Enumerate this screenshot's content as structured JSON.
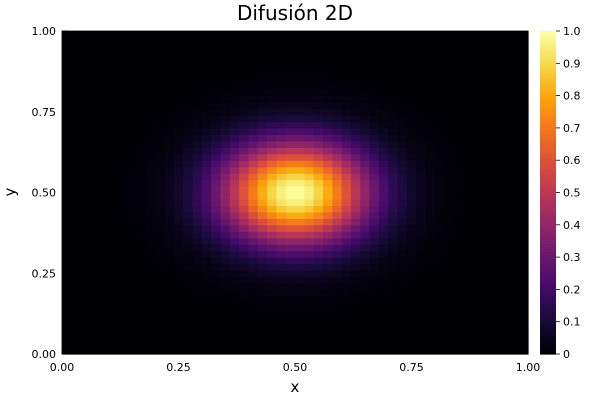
{
  "chart_data": {
    "type": "heatmap",
    "title": "Difusión 2D",
    "xlabel": "x",
    "ylabel": "y",
    "xlim": [
      0,
      1
    ],
    "ylim": [
      0,
      1
    ],
    "x_ticks": [
      "0.00",
      "0.25",
      "0.50",
      "0.75",
      "1.00"
    ],
    "y_ticks": [
      "0.00",
      "0.25",
      "0.50",
      "0.75",
      "1.00"
    ],
    "grid_cells": [
      50,
      50
    ],
    "field": {
      "shape": "gaussian",
      "center": [
        0.5,
        0.5
      ],
      "peak_value": 1.0,
      "sigma_x": 0.11,
      "sigma_y": 0.11
    },
    "colorbar": {
      "range": [
        0,
        1
      ],
      "ticks": [
        "0",
        "0.1",
        "0.2",
        "0.3",
        "0.4",
        "0.5",
        "0.6",
        "0.7",
        "0.8",
        "0.9",
        "1.0"
      ],
      "colormap": "inferno",
      "placement": "right"
    },
    "grid": false
  }
}
